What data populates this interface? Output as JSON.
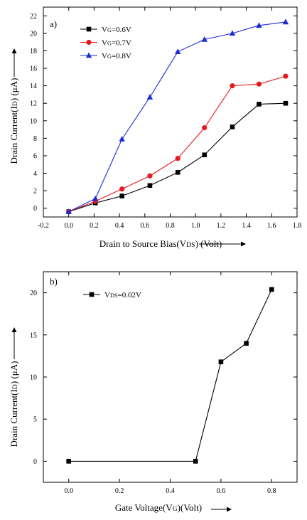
{
  "chart_data": [
    {
      "type": "line",
      "panel_label": "a)",
      "xlabel": "Drain to Source Bias(V",
      "xlabel_sub": "DS",
      "xlabel_suffix": ") (Volt)",
      "ylabel": "Drain Current(I",
      "ylabel_sub": "D",
      "ylabel_suffix": ") (μA)",
      "xlim": [
        -0.2,
        1.8
      ],
      "ylim": [
        -1,
        23
      ],
      "xticks": [
        "-0.2",
        "0.0",
        "0.2",
        "0.4",
        "0.6",
        "0.8",
        "1.0",
        "1.2",
        "1.4",
        "1.6",
        "1.8"
      ],
      "yticks": [
        "0",
        "2",
        "4",
        "6",
        "8",
        "10",
        "12",
        "14",
        "16",
        "18",
        "20",
        "22"
      ],
      "legend_position": "top-left",
      "grid": false,
      "series": [
        {
          "name_prefix": "V",
          "name_sub": "G",
          "name_suffix": "=0.6V",
          "color": "#000000",
          "marker": "square",
          "x": [
            0.0,
            0.21,
            0.42,
            0.64,
            0.86,
            1.07,
            1.29,
            1.5,
            1.71
          ],
          "y": [
            -0.4,
            0.6,
            1.4,
            2.6,
            4.1,
            6.1,
            9.3,
            11.9,
            12.0
          ]
        },
        {
          "name_prefix": "V",
          "name_sub": "G",
          "name_suffix": "=0.7V",
          "color": "#e8191c",
          "marker": "circle",
          "x": [
            0.0,
            0.21,
            0.42,
            0.64,
            0.86,
            1.07,
            1.29,
            1.5,
            1.71
          ],
          "y": [
            -0.4,
            0.8,
            2.2,
            3.7,
            5.7,
            9.2,
            14.0,
            14.2,
            15.1
          ]
        },
        {
          "name_prefix": "V",
          "name_sub": "G",
          "name_suffix": "=0.8V",
          "color": "#1b2ad8",
          "marker": "triangle",
          "x": [
            0.0,
            0.21,
            0.42,
            0.64,
            0.86,
            1.07,
            1.29,
            1.5,
            1.71
          ],
          "y": [
            -0.4,
            1.1,
            7.9,
            12.7,
            17.9,
            19.3,
            20.0,
            20.9,
            21.3
          ]
        }
      ]
    },
    {
      "type": "line",
      "panel_label": "b)",
      "xlabel": "Gate Voltage(V",
      "xlabel_sub": "G",
      "xlabel_suffix": ")(Volt)",
      "ylabel": "Drain Current(I",
      "ylabel_sub": "D",
      "ylabel_suffix": ") (μA)",
      "xlim": [
        -0.1,
        0.9
      ],
      "ylim": [
        -2.5,
        22.5
      ],
      "xticks": [
        "0.0",
        "0.2",
        "0.4",
        "0.6",
        "0.8"
      ],
      "yticks": [
        "0",
        "5",
        "10",
        "15",
        "20"
      ],
      "legend_position": "top-left",
      "grid": false,
      "series": [
        {
          "name_prefix": "V",
          "name_sub": "DS",
          "name_suffix": "=0.02V",
          "color": "#000000",
          "marker": "square",
          "x": [
            0.0,
            0.5,
            0.6,
            0.7,
            0.8
          ],
          "y": [
            0.0,
            0.0,
            11.8,
            14.0,
            20.4
          ]
        }
      ]
    }
  ]
}
